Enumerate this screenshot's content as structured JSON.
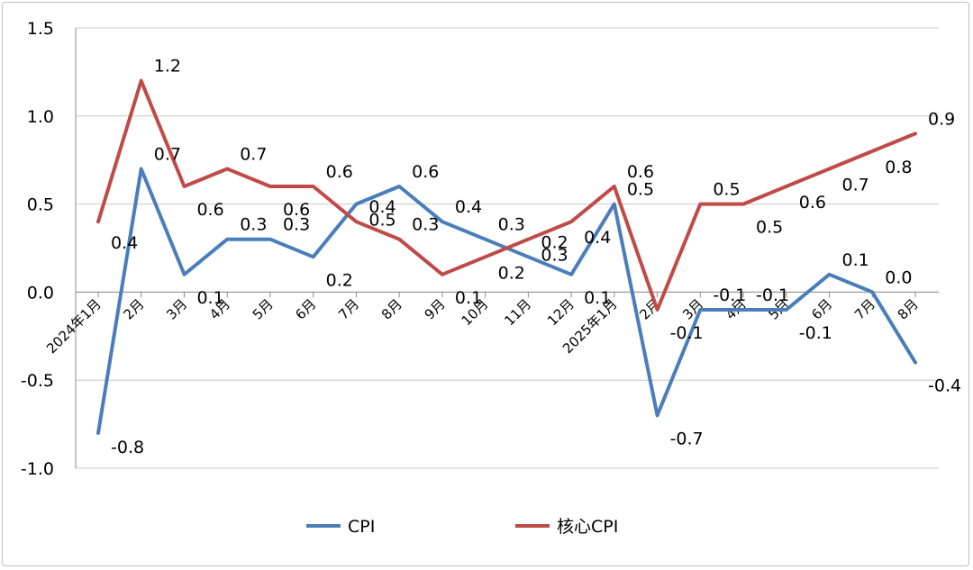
{
  "chart_data": {
    "type": "line",
    "categories": [
      "2024年1月",
      "2月",
      "3月",
      "4月",
      "5月",
      "6月",
      "7月",
      "8月",
      "9月",
      "10月",
      "11月",
      "12月",
      "2025年1月",
      "2月",
      "3月",
      "4月",
      "5月",
      "6月",
      "7月",
      "8月"
    ],
    "series": [
      {
        "name": "CPI",
        "color": "#4a7ebb",
        "values": [
          -0.8,
          0.7,
          0.1,
          0.3,
          0.3,
          0.2,
          0.5,
          0.6,
          0.4,
          0.3,
          0.2,
          0.1,
          0.5,
          -0.7,
          -0.1,
          -0.1,
          -0.1,
          0.1,
          0.0,
          -0.4
        ],
        "labels": [
          "-0.8",
          "0.7",
          "0.1",
          "0.3",
          "0.3",
          "0.2",
          "0.5",
          "0.6",
          "0.4",
          "0.3",
          "0.2",
          "0.1",
          "0.5",
          "-0.7",
          "-0.1",
          "-0.1",
          "-0.1",
          "0.1",
          "0.0",
          "-0.4"
        ]
      },
      {
        "name": "核心CPI",
        "color": "#be4b48",
        "values": [
          0.4,
          1.2,
          0.6,
          0.7,
          0.6,
          0.6,
          0.4,
          0.3,
          0.1,
          0.2,
          0.3,
          0.4,
          0.6,
          -0.1,
          0.5,
          0.5,
          0.6,
          0.7,
          0.8,
          0.9
        ],
        "labels": [
          "0.4",
          "1.2",
          "0.6",
          "0.7",
          "0.6",
          "0.6",
          "0.4",
          "0.3",
          "0.1",
          "0.2",
          "0.3",
          "0.4",
          "0.6",
          "-0.1",
          "0.5",
          "0.5",
          "0.6",
          "0.7",
          "0.8",
          "0.9"
        ]
      }
    ],
    "y_ticks": [
      "1.5",
      "1.0",
      "0.5",
      "0.0",
      "-0.5",
      "-1.0"
    ],
    "ylim": [
      -1.0,
      1.5
    ],
    "grid": true,
    "legend_position": "bottom-center"
  }
}
